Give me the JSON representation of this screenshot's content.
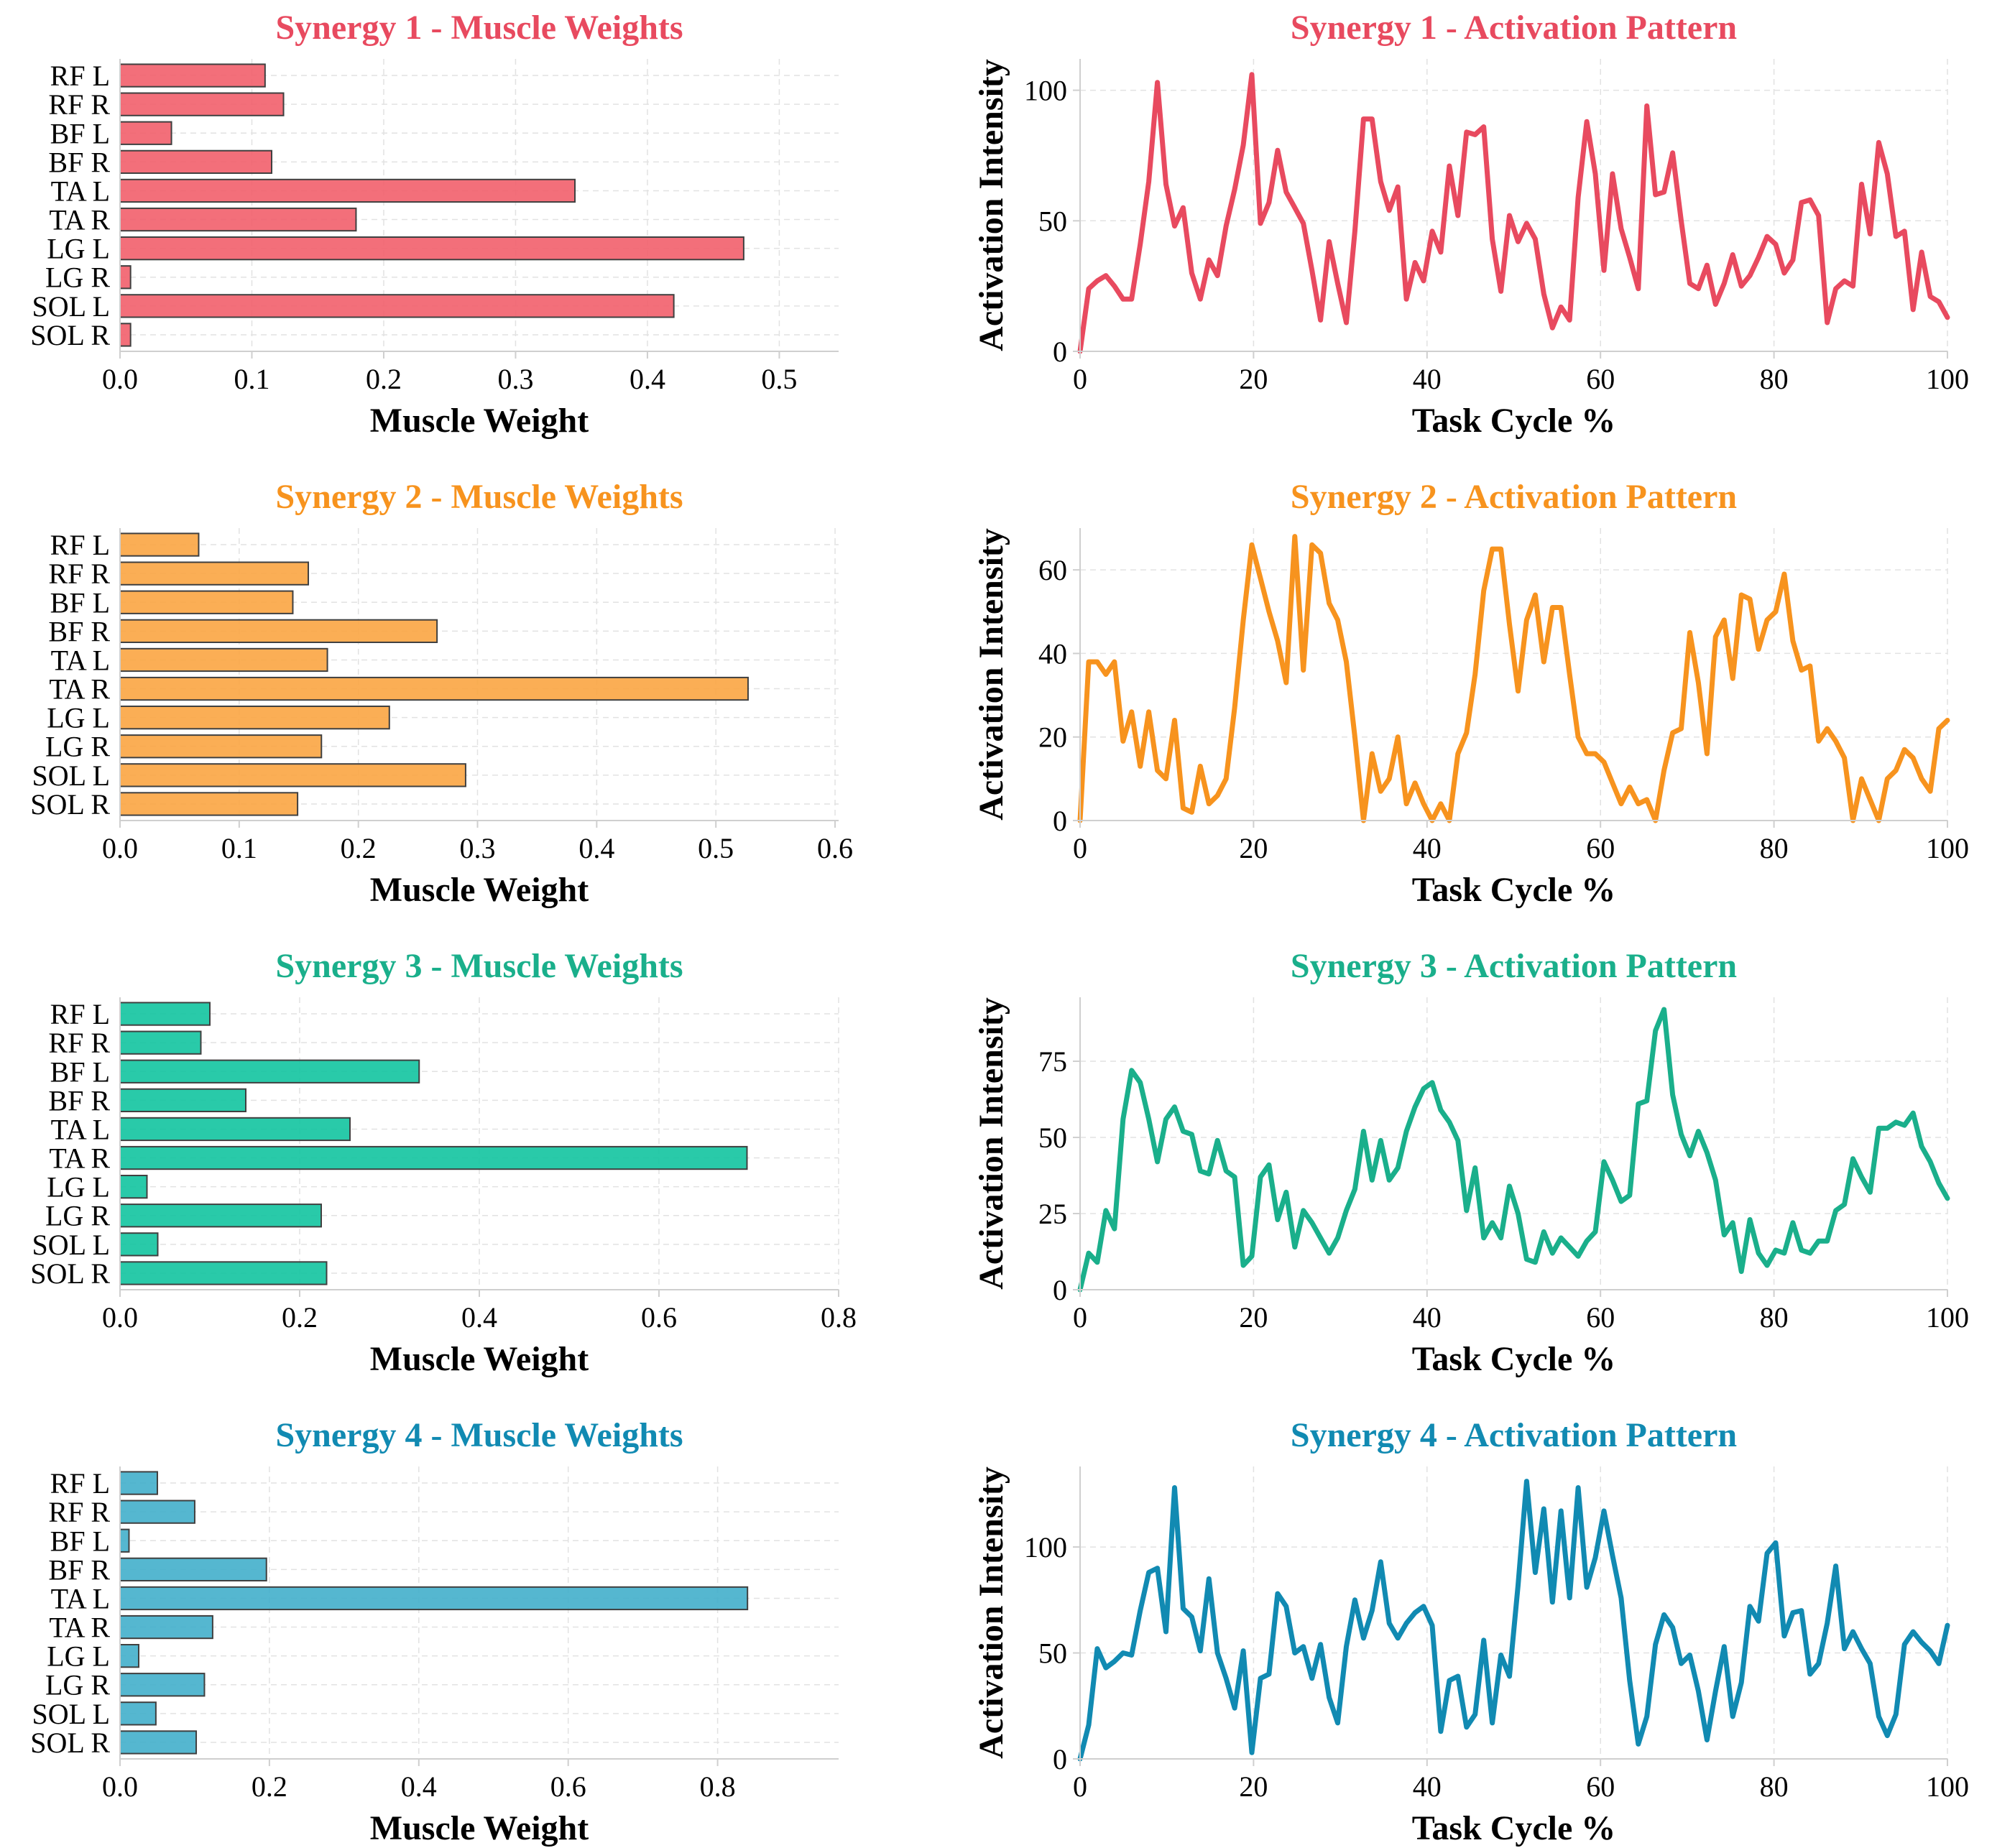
{
  "chart_data": [
    {
      "panel": "weights-1",
      "type": "bar",
      "orientation": "horizontal",
      "title": "Synergy 1 - Muscle Weights",
      "xlabel": "Muscle Weight",
      "ylabel": "",
      "color": "#F25F6C",
      "title_color": "#E84A5F",
      "categories": [
        "RF L",
        "RF R",
        "BF L",
        "BF R",
        "TA L",
        "TA R",
        "LG L",
        "LG R",
        "SOL L",
        "SOL R"
      ],
      "values": [
        0.11,
        0.124,
        0.039,
        0.115,
        0.345,
        0.179,
        0.473,
        0.008,
        0.42,
        0.008
      ],
      "xlim": [
        0,
        0.545
      ],
      "xticks": [
        0.0,
        0.1,
        0.2,
        0.3,
        0.4,
        0.5
      ],
      "xtick_labels": [
        "0.0",
        "0.1",
        "0.2",
        "0.3",
        "0.4",
        "0.5"
      ],
      "grid": true
    },
    {
      "panel": "activation-1",
      "type": "line",
      "title": "Synergy 1 - Activation Pattern",
      "xlabel": "Task Cycle %",
      "ylabel": "Activation Intensity",
      "color": "#E84A5F",
      "title_color": "#E84A5F",
      "x_range": [
        0,
        100
      ],
      "values": [
        0,
        24,
        27,
        29,
        25,
        20,
        20,
        41,
        65,
        103,
        64,
        48,
        55,
        30,
        20,
        35,
        29,
        48,
        62,
        79,
        106,
        49,
        57,
        77,
        61,
        55,
        49,
        31,
        12,
        42,
        26,
        11,
        46,
        89,
        89,
        65,
        54,
        63,
        20,
        34,
        27,
        46,
        38,
        71,
        52,
        84,
        83,
        86,
        43,
        23,
        52,
        42,
        49,
        43,
        22,
        9,
        17,
        12,
        59,
        88,
        68,
        31,
        68,
        47,
        36,
        24,
        94,
        60,
        61,
        76,
        50,
        26,
        24,
        33,
        18,
        26,
        37,
        25,
        29,
        36,
        44,
        41,
        30,
        35,
        57,
        58,
        52,
        11,
        24,
        27,
        25,
        64,
        45,
        80,
        68,
        44,
        46,
        16,
        38,
        21,
        19,
        13
      ],
      "ylim": [
        0,
        112
      ],
      "yticks": [
        0,
        50,
        100
      ],
      "xticks": [
        0,
        20,
        40,
        60,
        80,
        100
      ],
      "grid": true
    },
    {
      "panel": "weights-2",
      "type": "bar",
      "orientation": "horizontal",
      "title": "Synergy 2 - Muscle Weights",
      "xlabel": "Muscle Weight",
      "ylabel": "",
      "color": "#FBA543",
      "title_color": "#F7931E",
      "categories": [
        "RF L",
        "RF R",
        "BF L",
        "BF R",
        "TA L",
        "TA R",
        "LG L",
        "LG R",
        "SOL L",
        "SOL R"
      ],
      "values": [
        0.066,
        0.158,
        0.145,
        0.266,
        0.174,
        0.527,
        0.226,
        0.169,
        0.29,
        0.149
      ],
      "xlim": [
        0,
        0.603
      ],
      "xticks": [
        0.0,
        0.1,
        0.2,
        0.3,
        0.4,
        0.5,
        0.6
      ],
      "xtick_labels": [
        "0.0",
        "0.1",
        "0.2",
        "0.3",
        "0.4",
        "0.5",
        "0.6"
      ],
      "grid": true
    },
    {
      "panel": "activation-2",
      "type": "line",
      "title": "Synergy 2 - Activation Pattern",
      "xlabel": "Task Cycle %",
      "ylabel": "Activation Intensity",
      "color": "#F7931E",
      "title_color": "#F7931E",
      "x_range": [
        0,
        100
      ],
      "values": [
        0,
        38,
        38,
        35,
        38,
        19,
        26,
        13,
        26,
        12,
        10,
        24,
        3,
        2,
        13,
        4,
        6,
        10,
        27,
        48,
        66,
        58,
        50,
        43,
        33,
        68,
        36,
        66,
        64,
        52,
        48,
        38,
        20,
        0,
        16,
        7,
        10,
        20,
        4,
        9,
        4,
        0,
        4,
        0,
        16,
        21,
        35,
        55,
        65,
        65,
        47,
        31,
        48,
        54,
        38,
        51,
        51,
        35,
        20,
        16,
        16,
        14,
        9,
        4,
        8,
        4,
        5,
        0,
        12,
        21,
        22,
        45,
        33,
        16,
        44,
        48,
        34,
        54,
        53,
        41,
        48,
        50,
        59,
        43,
        36,
        37,
        19,
        22,
        19,
        15,
        0,
        10,
        5,
        0,
        10,
        12,
        17,
        15,
        10,
        7,
        22,
        24
      ],
      "ylim": [
        0,
        70
      ],
      "yticks": [
        0,
        20,
        40,
        60
      ],
      "xticks": [
        0,
        20,
        40,
        60,
        80,
        100
      ],
      "grid": true
    },
    {
      "panel": "weights-3",
      "type": "bar",
      "orientation": "horizontal",
      "title": "Synergy 3 - Muscle Weights",
      "xlabel": "Muscle Weight",
      "ylabel": "",
      "color": "#12C4A0",
      "title_color": "#1AAF8B",
      "categories": [
        "RF L",
        "RF R",
        "BF L",
        "BF R",
        "TA L",
        "TA R",
        "LG L",
        "LG R",
        "SOL L",
        "SOL R"
      ],
      "values": [
        0.1,
        0.09,
        0.333,
        0.14,
        0.256,
        0.698,
        0.03,
        0.224,
        0.042,
        0.23
      ],
      "xlim": [
        0,
        0.8
      ],
      "xticks": [
        0.0,
        0.2,
        0.4,
        0.6,
        0.8
      ],
      "xtick_labels": [
        "0.0",
        "0.2",
        "0.4",
        "0.6",
        "0.8"
      ],
      "grid": true
    },
    {
      "panel": "activation-3",
      "type": "line",
      "title": "Synergy 3 - Activation Pattern",
      "xlabel": "Task Cycle %",
      "ylabel": "Activation Intensity",
      "color": "#1AAF8B",
      "title_color": "#1AAF8B",
      "x_range": [
        0,
        100
      ],
      "values": [
        0,
        12,
        9,
        26,
        20,
        56,
        72,
        68,
        56,
        42,
        56,
        60,
        52,
        51,
        39,
        38,
        49,
        39,
        37,
        8,
        11,
        37,
        41,
        23,
        32,
        14,
        26,
        22,
        17,
        12,
        17,
        26,
        33,
        52,
        36,
        49,
        36,
        40,
        52,
        60,
        66,
        68,
        59,
        55,
        49,
        26,
        40,
        17,
        22,
        17,
        34,
        25,
        10,
        9,
        19,
        12,
        17,
        14,
        11,
        16,
        19,
        42,
        36,
        29,
        31,
        61,
        62,
        85,
        92,
        64,
        51,
        44,
        52,
        45,
        36,
        18,
        22,
        6,
        23,
        12,
        8,
        13,
        12,
        22,
        13,
        12,
        16,
        16,
        26,
        28,
        43,
        37,
        32,
        53,
        53,
        55,
        54,
        58,
        47,
        42,
        35,
        30
      ],
      "ylim": [
        0,
        96
      ],
      "yticks": [
        0,
        25,
        50,
        75
      ],
      "xticks": [
        0,
        20,
        40,
        60,
        80,
        100
      ],
      "grid": true
    },
    {
      "panel": "weights-4",
      "type": "bar",
      "orientation": "horizontal",
      "title": "Synergy 4 - Muscle Weights",
      "xlabel": "Muscle Weight",
      "ylabel": "",
      "color": "#43AFCB",
      "title_color": "#118AB2",
      "categories": [
        "RF L",
        "RF R",
        "BF L",
        "BF R",
        "TA L",
        "TA R",
        "LG L",
        "LG R",
        "SOL L",
        "SOL R"
      ],
      "values": [
        0.05,
        0.1,
        0.012,
        0.196,
        0.84,
        0.124,
        0.025,
        0.113,
        0.048,
        0.102
      ],
      "xlim": [
        0,
        0.962
      ],
      "xticks": [
        0.0,
        0.2,
        0.4,
        0.6,
        0.8
      ],
      "xtick_labels": [
        "0.0",
        "0.2",
        "0.4",
        "0.6",
        "0.8"
      ],
      "grid": true
    },
    {
      "panel": "activation-4",
      "type": "line",
      "title": "Synergy 4 - Activation Pattern",
      "xlabel": "Task Cycle %",
      "ylabel": "Activation Intensity",
      "color": "#118AB2",
      "title_color": "#118AB2",
      "x_range": [
        0,
        100
      ],
      "values": [
        0,
        16,
        52,
        43,
        46,
        50,
        49,
        70,
        88,
        90,
        60,
        128,
        71,
        67,
        51,
        85,
        50,
        38,
        24,
        51,
        3,
        38,
        40,
        78,
        72,
        50,
        53,
        38,
        54,
        29,
        17,
        53,
        75,
        57,
        70,
        93,
        64,
        57,
        64,
        69,
        72,
        63,
        13,
        37,
        39,
        15,
        21,
        56,
        17,
        49,
        39,
        82,
        131,
        88,
        118,
        74,
        117,
        76,
        128,
        81,
        95,
        117,
        96,
        76,
        37,
        7,
        20,
        54,
        68,
        62,
        45,
        49,
        32,
        9,
        32,
        53,
        20,
        36,
        72,
        65,
        97,
        102,
        58,
        69,
        70,
        40,
        45,
        64,
        91,
        52,
        60,
        52,
        45,
        20,
        11,
        21,
        54,
        60,
        55,
        51,
        45,
        63
      ],
      "ylim": [
        0,
        138
      ],
      "yticks": [
        0,
        50,
        100
      ],
      "xticks": [
        0,
        20,
        40,
        60,
        80,
        100
      ],
      "grid": true
    }
  ]
}
